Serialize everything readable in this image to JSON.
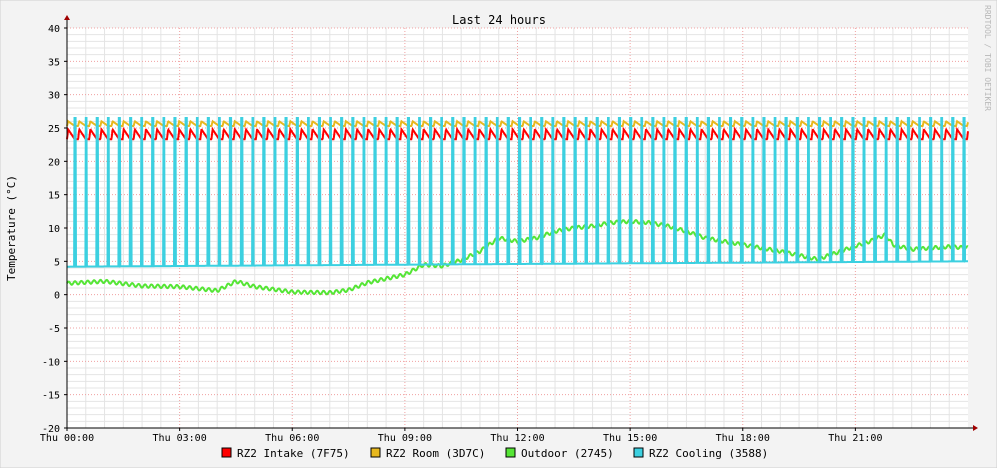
{
  "watermark": "RRDTOOL / TOBI OETIKER",
  "chart_data": {
    "type": "line",
    "title": "Last 24 hours",
    "ylabel": "Temperature (°C)",
    "xlabel": "",
    "ylim": [
      -20,
      40
    ],
    "y_ticks": [
      -20,
      -15,
      -10,
      -5,
      0,
      5,
      10,
      15,
      20,
      25,
      30,
      35,
      40
    ],
    "x_range_hours": [
      0,
      24
    ],
    "x_ticks": [
      {
        "hour": 0,
        "label": "Thu 00:00"
      },
      {
        "hour": 3,
        "label": "Thu 03:00"
      },
      {
        "hour": 6,
        "label": "Thu 06:00"
      },
      {
        "hour": 9,
        "label": "Thu 09:00"
      },
      {
        "hour": 12,
        "label": "Thu 12:00"
      },
      {
        "hour": 15,
        "label": "Thu 15:00"
      },
      {
        "hour": 18,
        "label": "Thu 18:00"
      },
      {
        "hour": 21,
        "label": "Thu 21:00"
      }
    ],
    "grid": true,
    "legend_position": "bottom",
    "series": [
      {
        "name": "RZ2 Intake (7F75)",
        "color": "#ff0000",
        "pattern": "sawtooth",
        "cycle_hours": 0.296,
        "low": 23.3,
        "high": 24.8,
        "x": [
          0,
          24
        ],
        "y": [
          23.3,
          23.3
        ]
      },
      {
        "name": "RZ2 Room (3D7C)",
        "color": "#e8b81e",
        "pattern": "sawtooth",
        "cycle_hours": 0.296,
        "low": 25.3,
        "high": 26.0,
        "x": [
          0,
          24
        ],
        "y": [
          25.3,
          25.3
        ]
      },
      {
        "name": "Outdoor (2745)",
        "color": "#55e535",
        "pattern": "line",
        "x": [
          0,
          1,
          2,
          3,
          4,
          4.5,
          5,
          6,
          7,
          7.5,
          8,
          9,
          9.5,
          10,
          10.5,
          11,
          11.5,
          12,
          12.5,
          13,
          13.5,
          14,
          14.5,
          15,
          15.5,
          16,
          16.5,
          17,
          18,
          19,
          20,
          20.5,
          21,
          21.3,
          21.8,
          22,
          22.5,
          23,
          23.5,
          24
        ],
        "y": [
          1.7,
          2.0,
          1.3,
          1.2,
          0.6,
          2.0,
          1.2,
          0.4,
          0.3,
          0.7,
          1.8,
          3.0,
          4.5,
          4.3,
          5.2,
          6.5,
          8.5,
          8.0,
          8.5,
          9.5,
          10.0,
          10.3,
          10.8,
          11.0,
          10.8,
          10.3,
          9.5,
          8.5,
          7.5,
          6.5,
          5.3,
          6.3,
          7.3,
          7.8,
          9.0,
          7.5,
          6.8,
          7.0,
          7.2,
          7.0
        ]
      },
      {
        "name": "RZ2 Cooling (3588)",
        "color": "#3cd0e0",
        "pattern": "pulse",
        "cycle_hours": 0.296,
        "low": 4.2,
        "high": 26.5,
        "note_low_later": 5.0,
        "x": [
          0,
          24
        ],
        "y": [
          4.2,
          5.0
        ]
      }
    ]
  }
}
